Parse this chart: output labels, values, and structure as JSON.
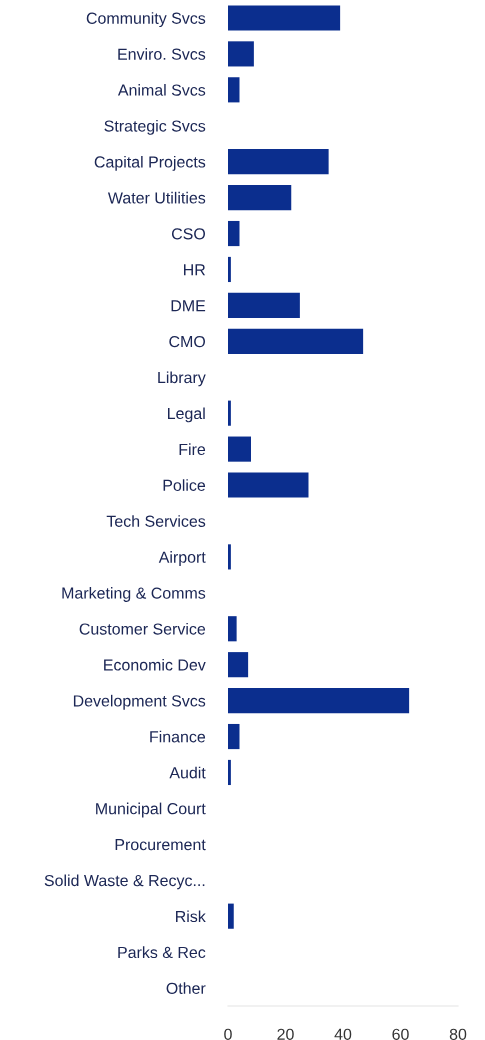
{
  "chart_data": {
    "type": "bar",
    "orientation": "horizontal",
    "categories": [
      "Community Svcs",
      "Enviro. Svcs",
      "Animal Svcs",
      "Strategic Svcs",
      "Capital Projects",
      "Water Utilities",
      "CSO",
      "HR",
      "DME",
      "CMO",
      "Library",
      "Legal",
      "Fire",
      "Police",
      "Tech Services",
      "Airport",
      "Marketing & Comms",
      "Customer Service",
      "Economic Dev",
      "Development Svcs",
      "Finance",
      "Audit",
      "Municipal Court",
      "Procurement",
      "Solid Waste & Recyc...",
      "Risk",
      "Parks & Rec",
      "Other"
    ],
    "values": [
      39,
      9,
      4,
      0,
      35,
      22,
      4,
      1,
      25,
      47,
      0,
      1,
      8,
      28,
      0,
      1,
      0,
      3,
      7,
      63,
      4,
      1,
      0,
      0,
      0,
      2,
      0,
      0
    ],
    "color": "#0b2e8e",
    "xlim": [
      0,
      80
    ],
    "xticks": [
      0,
      20,
      40,
      60,
      80
    ],
    "grid": false
  }
}
